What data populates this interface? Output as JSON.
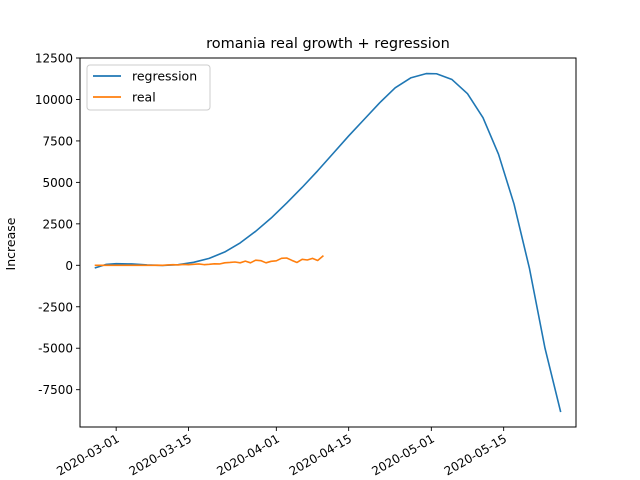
{
  "chart_data": {
    "type": "line",
    "title": "romania real growth + regression",
    "xlabel": "",
    "ylabel": "Increase",
    "x_type": "date",
    "xlim": [
      "2020-02-23",
      "2020-05-29"
    ],
    "ylim": [
      -9750,
      12500
    ],
    "xticks": [
      "2020-03-01",
      "2020-03-15",
      "2020-04-01",
      "2020-04-15",
      "2020-05-01",
      "2020-05-15"
    ],
    "yticks": [
      -7500,
      -5000,
      -2500,
      0,
      2500,
      5000,
      7500,
      10000,
      12500
    ],
    "grid": false,
    "legend_position": "upper-left",
    "series": [
      {
        "name": "regression",
        "color": "#1f77b4",
        "points": [
          [
            "2020-02-26",
            -150
          ],
          [
            "2020-02-28",
            50
          ],
          [
            "2020-03-01",
            100
          ],
          [
            "2020-03-04",
            80
          ],
          [
            "2020-03-07",
            20
          ],
          [
            "2020-03-10",
            -10
          ],
          [
            "2020-03-13",
            40
          ],
          [
            "2020-03-16",
            180
          ],
          [
            "2020-03-19",
            420
          ],
          [
            "2020-03-22",
            800
          ],
          [
            "2020-03-25",
            1350
          ],
          [
            "2020-03-28",
            2050
          ],
          [
            "2020-03-31",
            2850
          ],
          [
            "2020-04-03",
            3750
          ],
          [
            "2020-04-06",
            4700
          ],
          [
            "2020-04-09",
            5700
          ],
          [
            "2020-04-12",
            6750
          ],
          [
            "2020-04-15",
            7800
          ],
          [
            "2020-04-18",
            8800
          ],
          [
            "2020-04-21",
            9800
          ],
          [
            "2020-04-24",
            10700
          ],
          [
            "2020-04-27",
            11300
          ],
          [
            "2020-04-30",
            11560
          ],
          [
            "2020-05-02",
            11550
          ],
          [
            "2020-05-05",
            11200
          ],
          [
            "2020-05-08",
            10350
          ],
          [
            "2020-05-11",
            8900
          ],
          [
            "2020-05-14",
            6700
          ],
          [
            "2020-05-17",
            3700
          ],
          [
            "2020-05-20",
            -200
          ],
          [
            "2020-05-23",
            -5000
          ],
          [
            "2020-05-26",
            -8800
          ]
        ]
      },
      {
        "name": "real",
        "color": "#ff7f0e",
        "points": [
          [
            "2020-02-26",
            0
          ],
          [
            "2020-02-27",
            0
          ],
          [
            "2020-02-28",
            0
          ],
          [
            "2020-02-29",
            0
          ],
          [
            "2020-03-01",
            0
          ],
          [
            "2020-03-02",
            0
          ],
          [
            "2020-03-03",
            0
          ],
          [
            "2020-03-04",
            0
          ],
          [
            "2020-03-05",
            0
          ],
          [
            "2020-03-06",
            0
          ],
          [
            "2020-03-07",
            0
          ],
          [
            "2020-03-08",
            0
          ],
          [
            "2020-03-09",
            10
          ],
          [
            "2020-03-10",
            0
          ],
          [
            "2020-03-11",
            20
          ],
          [
            "2020-03-12",
            40
          ],
          [
            "2020-03-13",
            20
          ],
          [
            "2020-03-14",
            50
          ],
          [
            "2020-03-15",
            40
          ],
          [
            "2020-03-16",
            60
          ],
          [
            "2020-03-17",
            80
          ],
          [
            "2020-03-18",
            40
          ],
          [
            "2020-03-19",
            60
          ],
          [
            "2020-03-20",
            90
          ],
          [
            "2020-03-21",
            80
          ],
          [
            "2020-03-22",
            150
          ],
          [
            "2020-03-23",
            170
          ],
          [
            "2020-03-24",
            200
          ],
          [
            "2020-03-25",
            150
          ],
          [
            "2020-03-26",
            250
          ],
          [
            "2020-03-27",
            150
          ],
          [
            "2020-03-28",
            310
          ],
          [
            "2020-03-29",
            280
          ],
          [
            "2020-03-30",
            150
          ],
          [
            "2020-03-31",
            240
          ],
          [
            "2020-04-01",
            270
          ],
          [
            "2020-04-02",
            420
          ],
          [
            "2020-04-03",
            440
          ],
          [
            "2020-04-04",
            300
          ],
          [
            "2020-04-05",
            170
          ],
          [
            "2020-04-06",
            360
          ],
          [
            "2020-04-07",
            320
          ],
          [
            "2020-04-08",
            420
          ],
          [
            "2020-04-09",
            290
          ],
          [
            "2020-04-10",
            550
          ]
        ]
      }
    ]
  }
}
